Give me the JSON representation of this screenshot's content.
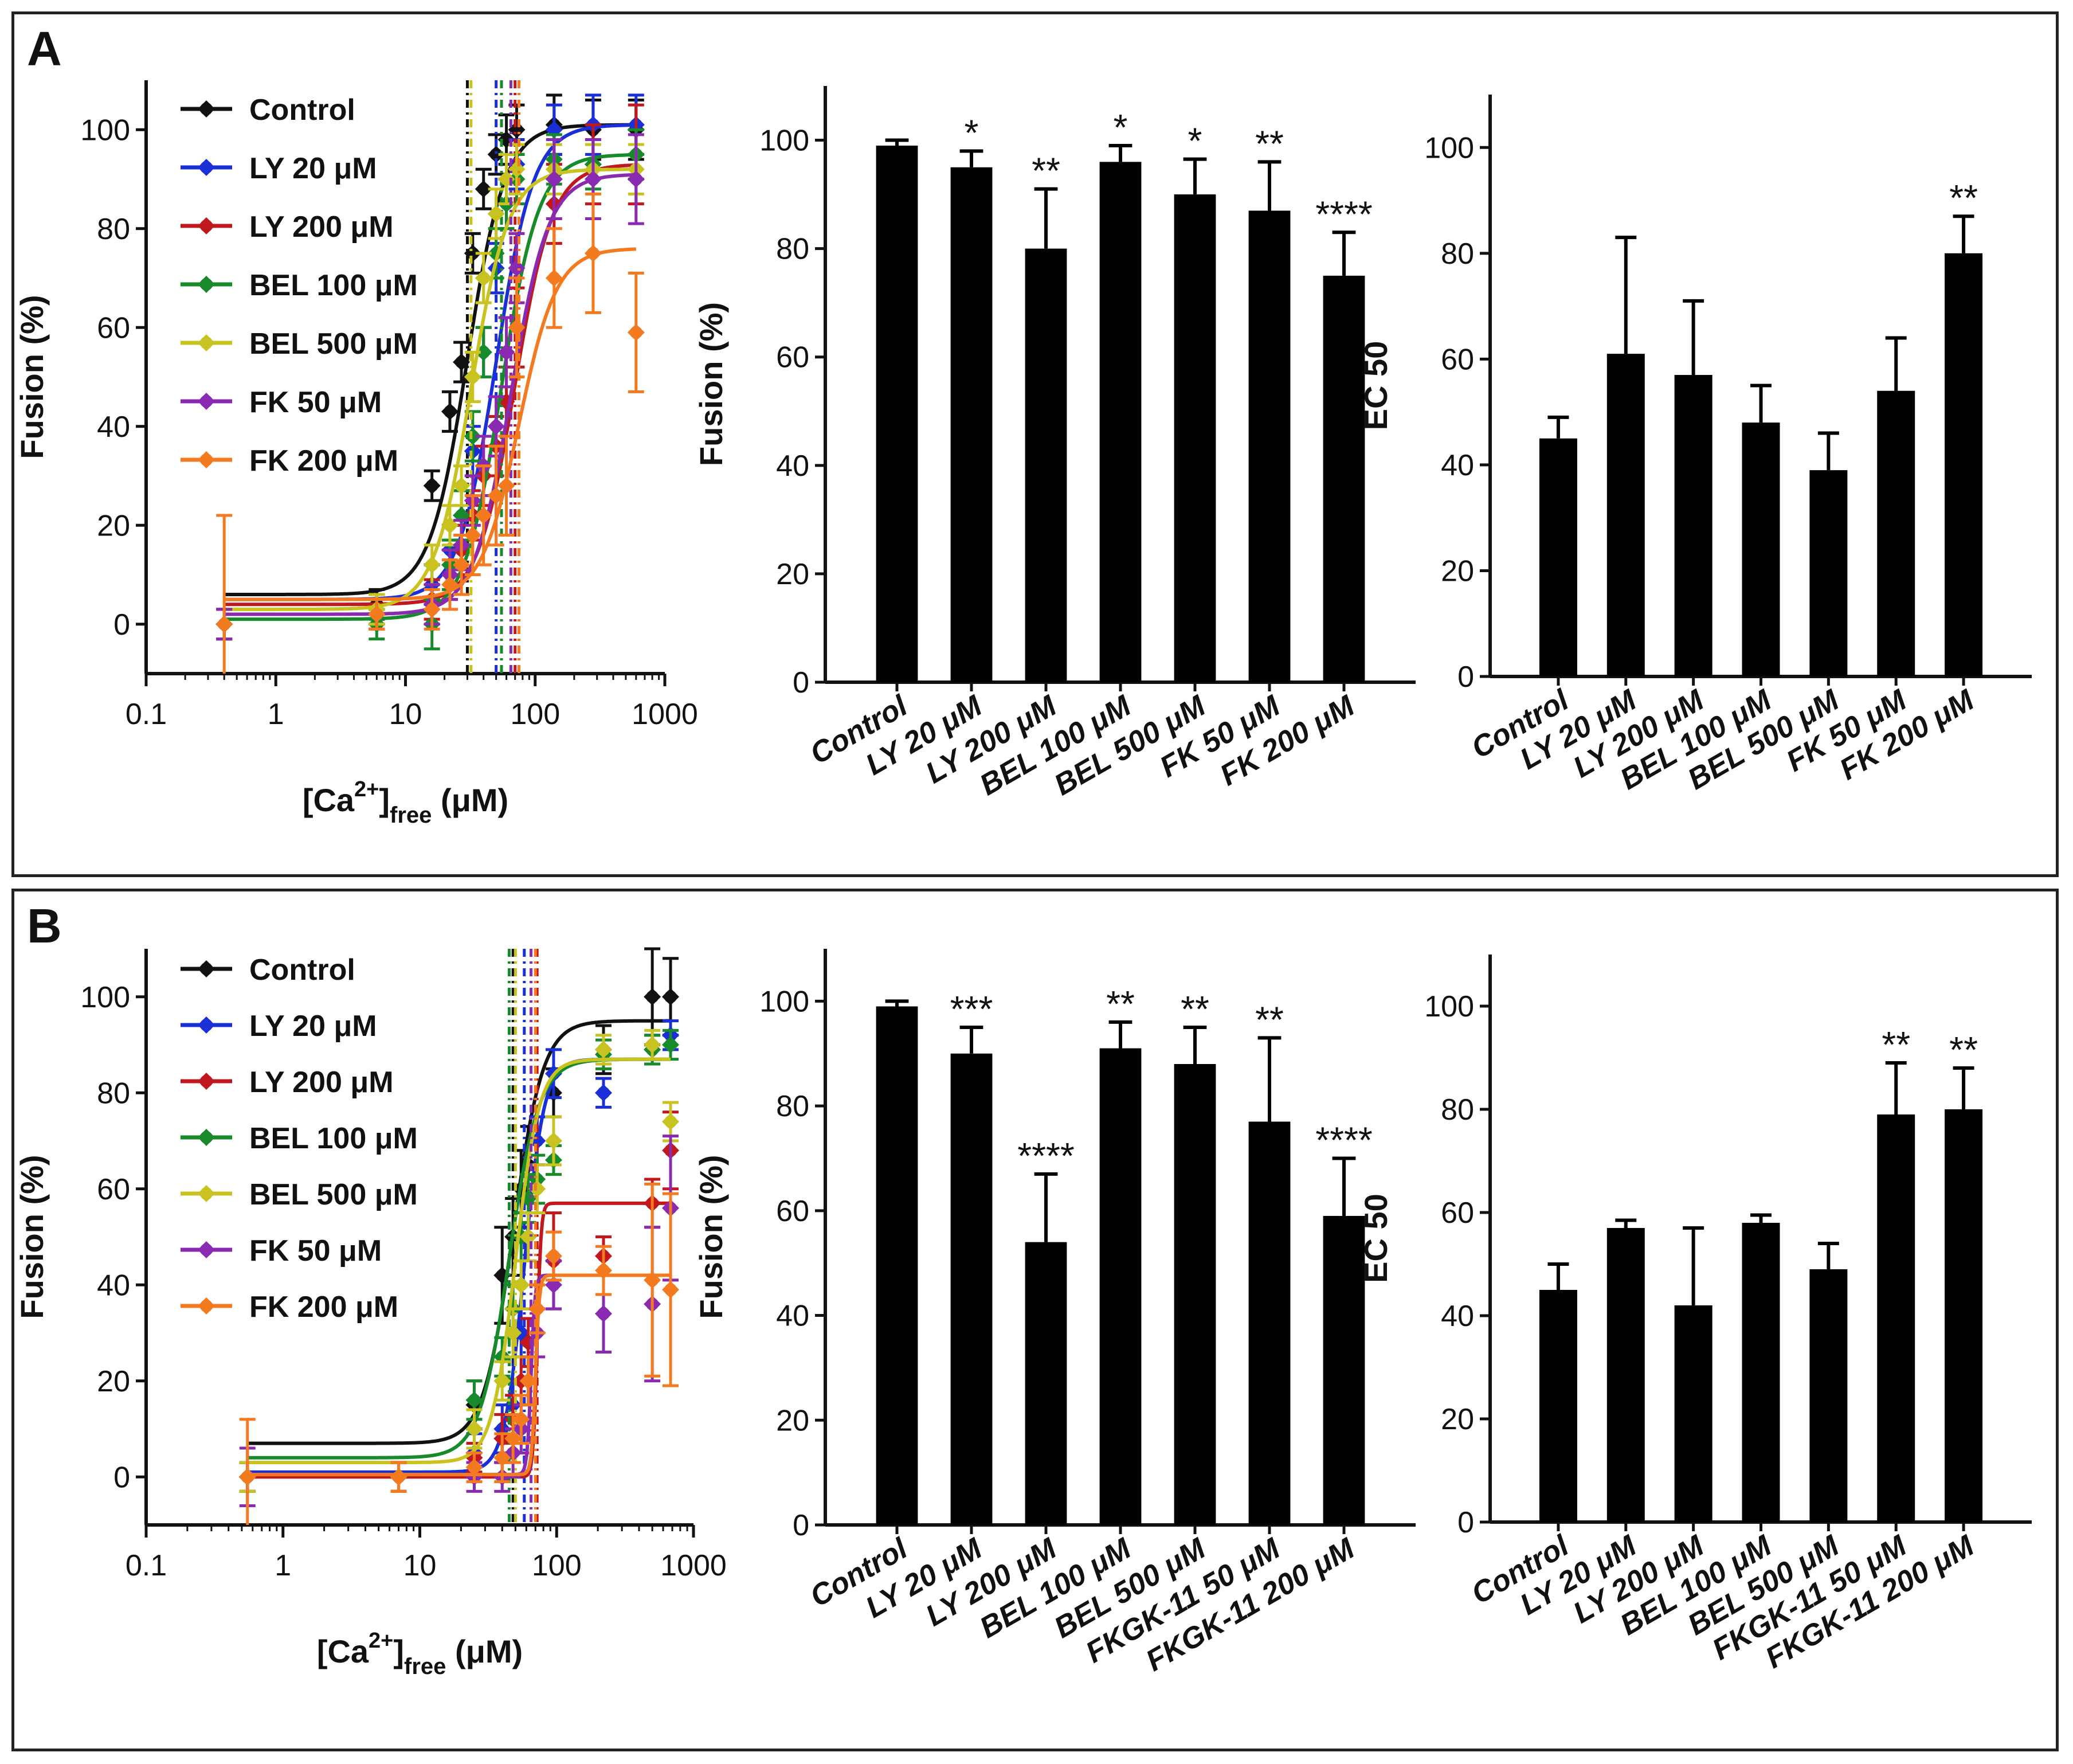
{
  "panels": [
    {
      "letter": "A"
    },
    {
      "letter": "B"
    }
  ],
  "series_colors": {
    "Control": "#111111",
    "LY 20 μM": "#1b2fd6",
    "LY 200 μM": "#c0181c",
    "BEL 100 μM": "#178a2c",
    "BEL 500 μM": "#c8c320",
    "FK 50 μM": "#8a2ab0",
    "FK 200 μM": "#f47a20"
  },
  "chart_data": [
    {
      "id": "A_curve",
      "type": "scatter",
      "xscale": "log",
      "xlabel_main": "[Ca",
      "xlabel_sup": "2+",
      "xlabel_close": "]",
      "xlabel_sub": "free",
      "xlabel_unit": " (μM)",
      "ylabel": "Fusion (%)",
      "xlim": [
        0.1,
        1000
      ],
      "ylim": [
        -10,
        110
      ],
      "xticks": [
        0.1,
        1,
        10,
        100,
        1000
      ],
      "xtick_labels": [
        "0.1",
        "1",
        "10",
        "100",
        "1000"
      ],
      "yticks": [
        0,
        20,
        40,
        60,
        80,
        100
      ],
      "ytick_labels": [
        "0",
        "20",
        "40",
        "60",
        "80",
        "100"
      ],
      "x": [
        0.4,
        6,
        16,
        22,
        27,
        33,
        40,
        50,
        60,
        72,
        140,
        280,
        600
      ],
      "series": [
        {
          "name": "Control",
          "bottom": 6,
          "top": 101,
          "ec50": 30,
          "hill": 3,
          "values": [
            0,
            4,
            28,
            43,
            53,
            75,
            88,
            95,
            98,
            100,
            101,
            100,
            100
          ],
          "errors": [
            3,
            3,
            3,
            4,
            4,
            4,
            4,
            4,
            5,
            5,
            6,
            6,
            6
          ]
        },
        {
          "name": "LY 20 μM",
          "bottom": 5,
          "top": 101,
          "ec50": 50,
          "hill": 3,
          "values": [
            0,
            3,
            8,
            15,
            22,
            35,
            55,
            72,
            85,
            93,
            100,
            101,
            101
          ],
          "errors": [
            3,
            3,
            4,
            5,
            5,
            5,
            5,
            5,
            5,
            5,
            5,
            6,
            6
          ]
        },
        {
          "name": "LY 200 μM",
          "bottom": 4,
          "top": 93,
          "ec50": 70,
          "hill": 3,
          "values": [
            0,
            2,
            5,
            10,
            15,
            22,
            30,
            36,
            45,
            60,
            85,
            93,
            95
          ],
          "errors": [
            3,
            3,
            4,
            5,
            5,
            5,
            6,
            6,
            7,
            8,
            8,
            8,
            10
          ]
        },
        {
          "name": "BEL 100 μM",
          "bottom": 1,
          "top": 95,
          "ec50": 55,
          "hill": 3,
          "values": [
            0,
            0,
            0,
            12,
            22,
            38,
            55,
            75,
            85,
            90,
            94,
            93,
            95
          ],
          "errors": [
            3,
            3,
            5,
            5,
            5,
            5,
            5,
            5,
            5,
            5,
            5,
            5,
            5
          ]
        },
        {
          "name": "BEL 500 μM",
          "bottom": 3,
          "top": 92,
          "ec50": 32,
          "hill": 3,
          "values": [
            0,
            3,
            12,
            20,
            28,
            50,
            70,
            83,
            90,
            92,
            92,
            92,
            92
          ],
          "errors": [
            3,
            3,
            4,
            4,
            4,
            5,
            5,
            5,
            5,
            5,
            5,
            5,
            5
          ]
        },
        {
          "name": "FK 50 μM",
          "bottom": 2,
          "top": 91,
          "ec50": 65,
          "hill": 3,
          "values": [
            0,
            2,
            4,
            10,
            16,
            25,
            32,
            40,
            55,
            72,
            90,
            90,
            90
          ],
          "errors": [
            3,
            3,
            4,
            5,
            5,
            5,
            6,
            6,
            7,
            7,
            8,
            8,
            9
          ]
        },
        {
          "name": "FK 200 μM",
          "bottom": 5,
          "top": 76,
          "ec50": 75,
          "hill": 3,
          "values": [
            0,
            2,
            3,
            8,
            12,
            18,
            22,
            26,
            28,
            60,
            70,
            75,
            59
          ],
          "errors": [
            22,
            3,
            4,
            5,
            6,
            8,
            10,
            10,
            10,
            10,
            10,
            12,
            12
          ]
        }
      ]
    },
    {
      "id": "A_fusion",
      "type": "bar",
      "ylabel": "Fusion (%)",
      "ylim": [
        0,
        110
      ],
      "yticks": [
        0,
        20,
        40,
        60,
        80,
        100
      ],
      "ytick_labels": [
        "0",
        "20",
        "40",
        "60",
        "80",
        "100"
      ],
      "categories": [
        "Control",
        "LY 20 μM",
        "LY 200 μM",
        "BEL 100 μM",
        "BEL 500 μM",
        "FK 50 μM",
        "FK 200 μM"
      ],
      "values": [
        99,
        95,
        80,
        96,
        90,
        87,
        75
      ],
      "errors": [
        1,
        3,
        11,
        3,
        6.5,
        9,
        8
      ],
      "annotations": [
        "",
        "*",
        "**",
        "*",
        "*",
        "**",
        "****"
      ]
    },
    {
      "id": "A_ec50",
      "type": "bar",
      "ylabel": "EC 50",
      "ylim": [
        0,
        110
      ],
      "yticks": [
        0,
        20,
        40,
        60,
        80,
        100
      ],
      "ytick_labels": [
        "0",
        "20",
        "40",
        "60",
        "80",
        "100"
      ],
      "categories": [
        "Control",
        "LY 20 μM",
        "LY 200 μM",
        "BEL 100 μM",
        "BEL 500 μM",
        "FK 50 μM",
        "FK 200 μM"
      ],
      "values": [
        45,
        61,
        57,
        48,
        39,
        54,
        80
      ],
      "errors": [
        4,
        22,
        14,
        7,
        7,
        10,
        7
      ],
      "annotations": [
        "",
        "",
        "",
        "",
        "",
        "",
        "**"
      ]
    },
    {
      "id": "B_curve",
      "type": "scatter",
      "xscale": "log",
      "xlabel_main": "[Ca",
      "xlabel_sup": "2+",
      "xlabel_close": "]",
      "xlabel_sub": "free",
      "xlabel_unit": " (μM)",
      "ylabel": "Fusion (%)",
      "xlim": [
        0.1,
        1000
      ],
      "ylim": [
        -10,
        110
      ],
      "xticks": [
        0.1,
        1,
        10,
        100,
        1000
      ],
      "xtick_labels": [
        "0.1",
        "1",
        "10",
        "100",
        "1000"
      ],
      "yticks": [
        0,
        20,
        40,
        60,
        80,
        100
      ],
      "ytick_labels": [
        "0",
        "20",
        "40",
        "60",
        "80",
        "100"
      ],
      "x": [
        0.55,
        7,
        25,
        40,
        48,
        55,
        62,
        72,
        95,
        220,
        500,
        680
      ],
      "series": [
        {
          "name": "Control",
          "bottom": 7,
          "top": 95,
          "ec50": 48,
          "hill": 4,
          "values": [
            0,
            0,
            15,
            42,
            50,
            60,
            65,
            70,
            80,
            89,
            100,
            100
          ],
          "errors": [
            3,
            3,
            5,
            10,
            8,
            8,
            8,
            5,
            5,
            5,
            10,
            8
          ]
        },
        {
          "name": "LY 20 μM",
          "bottom": 1,
          "top": 87,
          "ec50": 58,
          "hill": 6,
          "values": [
            0,
            0,
            5,
            10,
            15,
            30,
            50,
            70,
            84,
            80,
            89,
            92
          ],
          "errors": [
            3,
            3,
            4,
            5,
            5,
            5,
            5,
            5,
            5,
            3,
            3,
            3
          ]
        },
        {
          "name": "LY 200 μM",
          "bottom": 0,
          "top": 57,
          "ec50": 72,
          "hill": 30,
          "values": [
            0,
            0,
            4,
            8,
            12,
            20,
            28,
            35,
            45,
            46,
            57,
            68
          ],
          "errors": [
            3,
            3,
            3,
            5,
            5,
            5,
            5,
            5,
            10,
            4,
            5,
            8
          ]
        },
        {
          "name": "BEL 100 μM",
          "bottom": 4,
          "top": 87,
          "ec50": 45,
          "hill": 4,
          "values": [
            0,
            0,
            16,
            25,
            35,
            50,
            58,
            62,
            66,
            88,
            89,
            90
          ],
          "errors": [
            3,
            3,
            4,
            4,
            5,
            5,
            5,
            5,
            3,
            3,
            3,
            3
          ]
        },
        {
          "name": "BEL 500 μM",
          "bottom": 3,
          "top": 87,
          "ec50": 50,
          "hill": 5,
          "values": [
            0,
            0,
            10,
            20,
            30,
            40,
            50,
            60,
            70,
            89,
            90,
            74
          ],
          "errors": [
            3,
            3,
            4,
            4,
            5,
            5,
            5,
            5,
            5,
            3,
            3,
            4
          ]
        },
        {
          "name": "FK 50 μM",
          "bottom": 0.5,
          "top": 42,
          "ec50": 65,
          "hill": 30,
          "values": [
            0,
            0,
            0,
            0,
            5,
            10,
            20,
            30,
            40,
            34,
            36,
            56
          ],
          "errors": [
            6,
            3,
            3,
            3,
            5,
            5,
            5,
            5,
            5,
            8,
            16,
            15
          ]
        },
        {
          "name": "FK 200 μM",
          "bottom": 0.5,
          "top": 42,
          "ec50": 70,
          "hill": 30,
          "values": [
            0,
            0,
            2,
            4,
            8,
            12,
            20,
            35,
            46,
            43,
            41,
            39
          ],
          "errors": [
            12,
            3,
            3,
            5,
            5,
            5,
            5,
            5,
            5,
            5,
            20,
            20
          ]
        }
      ]
    },
    {
      "id": "B_fusion",
      "type": "bar",
      "ylabel": "Fusion (%)",
      "ylim": [
        0,
        110
      ],
      "yticks": [
        0,
        20,
        40,
        60,
        80,
        100
      ],
      "ytick_labels": [
        "0",
        "20",
        "40",
        "60",
        "80",
        "100"
      ],
      "categories": [
        "Control",
        "LY 20 μM",
        "LY 200 μM",
        "BEL 100 μM",
        "BEL 500 μM",
        "FKGK-11 50 μM",
        "FKGK-11 200 μM"
      ],
      "values": [
        99,
        90,
        54,
        91,
        88,
        77,
        59
      ],
      "errors": [
        1,
        5,
        13,
        5,
        7,
        16,
        11
      ],
      "annotations": [
        "",
        "***",
        "****",
        "**",
        "**",
        "**",
        "****"
      ]
    },
    {
      "id": "B_ec50",
      "type": "bar",
      "ylabel": "EC 50",
      "ylim": [
        0,
        110
      ],
      "yticks": [
        0,
        20,
        40,
        60,
        80,
        100
      ],
      "ytick_labels": [
        "0",
        "20",
        "40",
        "60",
        "80",
        "100"
      ],
      "categories": [
        "Control",
        "LY 20 μM",
        "LY 200 μM",
        "BEL 100 μM",
        "BEL 500 μM",
        "FKGK-11 50 μM",
        "FKGK-11 200 μM"
      ],
      "values": [
        45,
        57,
        42,
        58,
        49,
        79,
        80
      ],
      "errors": [
        5,
        1.5,
        15,
        1.5,
        5,
        10,
        8
      ],
      "annotations": [
        "",
        "",
        "",
        "",
        "",
        "**",
        "**"
      ]
    }
  ]
}
